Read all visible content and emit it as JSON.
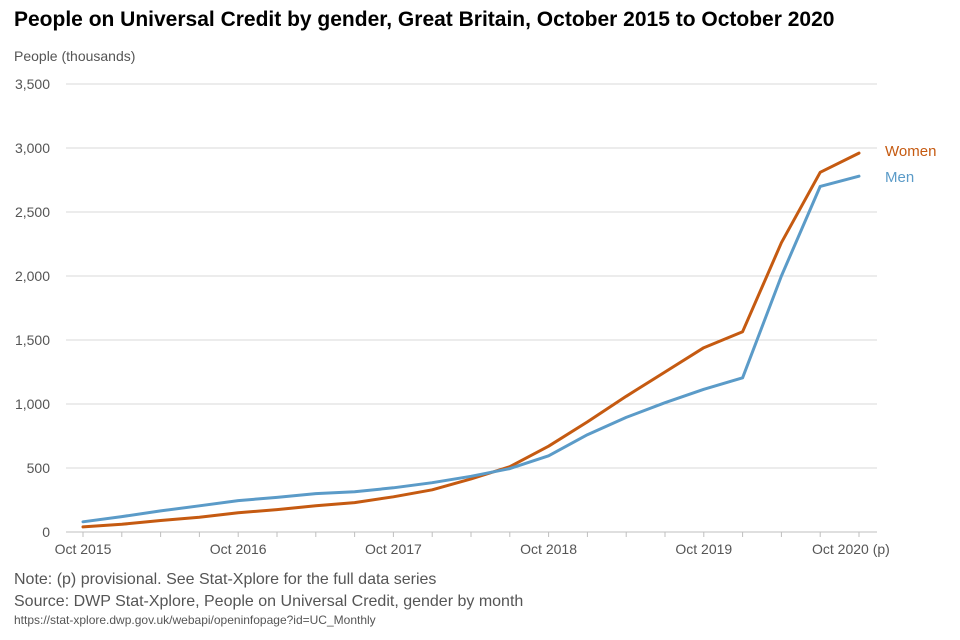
{
  "chart_data": {
    "type": "line",
    "title": "People on Universal Credit by gender, Great Britain, October 2015 to October 2020",
    "ylabel": "People (thousands)",
    "xlabel": "",
    "x_tick_labels": [
      "Oct 2015",
      "Oct 2016",
      "Oct 2017",
      "Oct 2018",
      "Oct 2019",
      "Oct 2020 (p)"
    ],
    "y_tick_labels": [
      "0",
      "500",
      "1,000",
      "1,500",
      "2,000",
      "2,500",
      "3,000",
      "3,500"
    ],
    "ylim": [
      0,
      3500
    ],
    "x_range_months": [
      0,
      60
    ],
    "grid": true,
    "legend_placement": "right, at line ends",
    "series": [
      {
        "name": "Women",
        "color": "#c55a11",
        "x": [
          0,
          3,
          6,
          9,
          12,
          15,
          18,
          21,
          24,
          27,
          30,
          33,
          36,
          39,
          42,
          45,
          48,
          51,
          54,
          57,
          60
        ],
        "values": [
          40,
          60,
          90,
          115,
          150,
          175,
          205,
          230,
          275,
          330,
          415,
          510,
          670,
          860,
          1060,
          1250,
          1440,
          1565,
          2260,
          2810,
          2960
        ]
      },
      {
        "name": "Men",
        "color": "#5b9bc8",
        "x": [
          0,
          3,
          6,
          9,
          12,
          15,
          18,
          21,
          24,
          27,
          30,
          33,
          36,
          39,
          42,
          45,
          48,
          51,
          54,
          57,
          60
        ],
        "values": [
          80,
          120,
          165,
          205,
          245,
          270,
          300,
          315,
          345,
          385,
          435,
          495,
          595,
          760,
          895,
          1010,
          1115,
          1205,
          2000,
          2700,
          2780
        ]
      }
    ]
  },
  "notes": {
    "note": "Note: (p) provisional. See Stat-Xplore for the full data series",
    "source": "Source: DWP Stat-Xplore, People on Universal Credit, gender by month",
    "url": "https://stat-xplore.dwp.gov.uk/webapi/openinfopage?id=UC_Monthly"
  }
}
